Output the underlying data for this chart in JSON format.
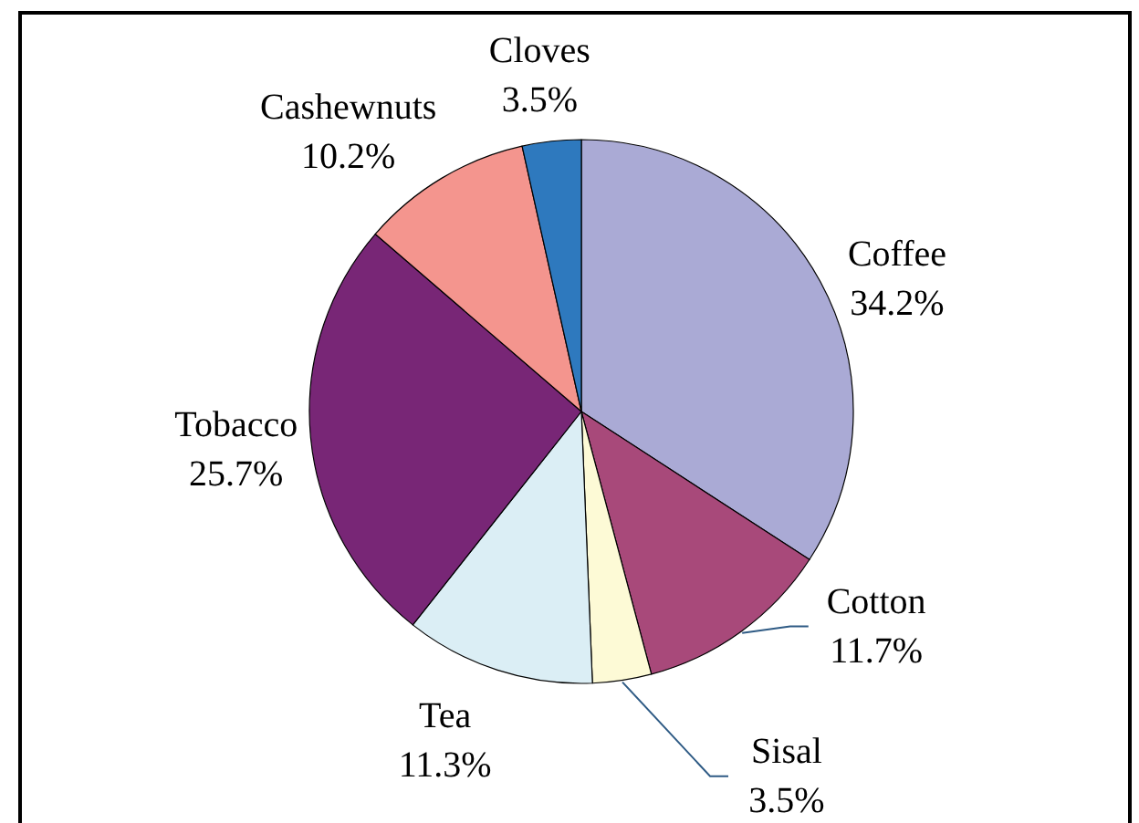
{
  "chart_data": {
    "type": "pie",
    "categories": [
      "Coffee",
      "Cotton",
      "Sisal",
      "Tea",
      "Tobacco",
      "Cashewnuts",
      "Cloves"
    ],
    "values": [
      34.2,
      11.7,
      3.5,
      11.3,
      25.7,
      10.2,
      3.5
    ],
    "colors": [
      "#aaaad5",
      "#a8497a",
      "#fdfad6",
      "#dbeef5",
      "#782676",
      "#f4958e",
      "#2e79be"
    ],
    "value_labels": [
      "34.2%",
      "11.7%",
      "3.5%",
      "11.3%",
      "25.7%",
      "10.2%",
      "3.5%"
    ]
  }
}
